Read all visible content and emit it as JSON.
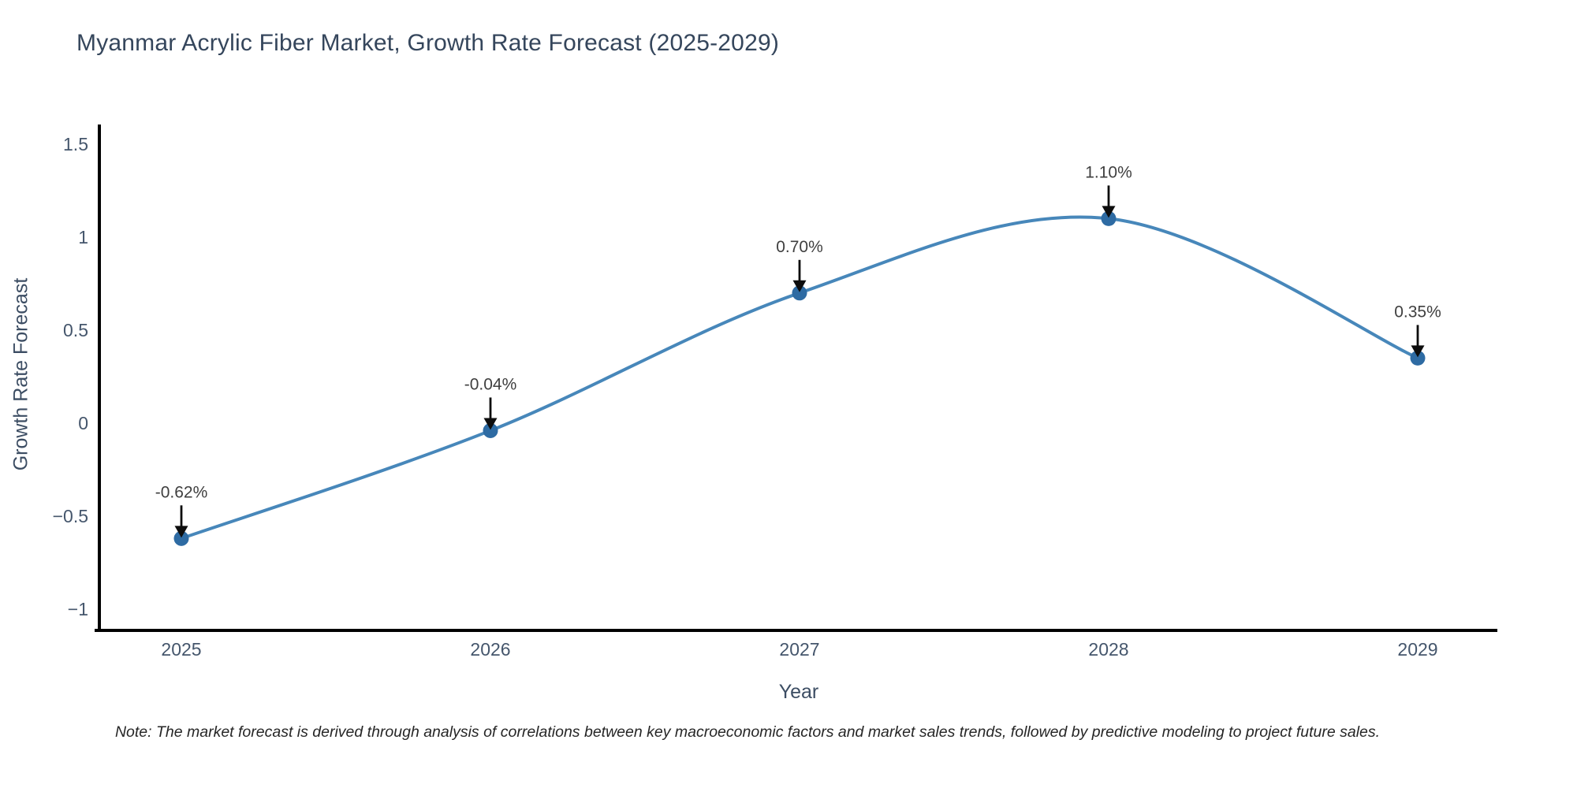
{
  "title": "Myanmar Acrylic Fiber Market, Growth Rate Forecast (2025-2029)",
  "note": "Note: The market forecast is derived through analysis of correlations between key macroeconomic factors and market sales trends, followed by predictive modeling to project future sales.",
  "chart_data": {
    "type": "line",
    "categories": [
      "2025",
      "2026",
      "2027",
      "2028",
      "2029"
    ],
    "values": [
      -0.62,
      -0.04,
      0.7,
      1.1,
      0.35
    ],
    "point_labels": [
      "-0.62%",
      "-0.04%",
      "0.70%",
      "1.10%",
      "0.35%"
    ],
    "title": "Myanmar Acrylic Fiber Market, Growth Rate Forecast (2025-2029)",
    "xlabel": "Year",
    "ylabel": "Growth Rate Forecast",
    "ylim": [
      -1.25,
      1.6
    ],
    "ytick_values": [
      1.5,
      1,
      0.5,
      0,
      -0.5,
      -1
    ],
    "ytick_labels": [
      "1.5",
      "1",
      "0.5",
      "0",
      "−0.5",
      "−1"
    ],
    "grid": false,
    "legend": "none",
    "line_color": "#4787ba",
    "marker_color": "#2e6ba3",
    "arrow_color": "#0d0d0d",
    "axis_color": "#000000"
  }
}
